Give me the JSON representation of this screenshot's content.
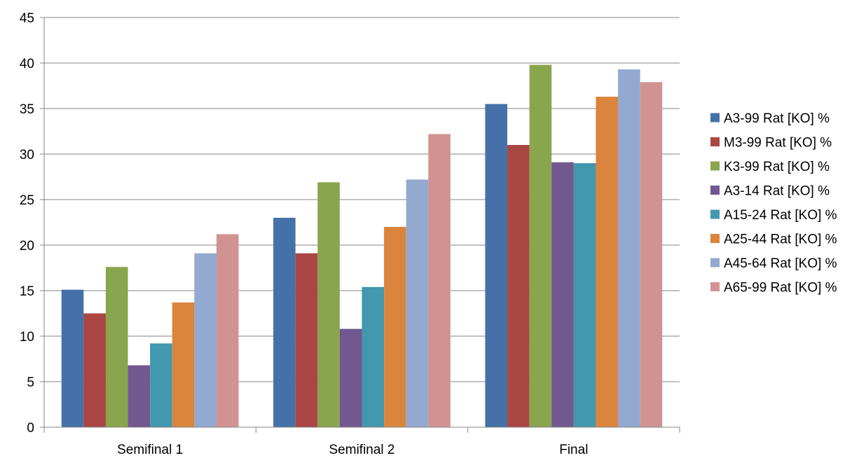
{
  "chart_data": {
    "type": "bar",
    "categories": [
      "Semifinal 1",
      "Semifinal 2",
      "Final"
    ],
    "series": [
      {
        "name": "A3-99 Rat [KO] %",
        "color": "#4472A8",
        "values": [
          15.1,
          23.0,
          35.5
        ]
      },
      {
        "name": "M3-99 Rat [KO] %",
        "color": "#AA4644",
        "values": [
          12.5,
          19.1,
          31.0
        ]
      },
      {
        "name": "K3-99 Rat [KO] %",
        "color": "#89A54E",
        "values": [
          17.6,
          26.9,
          39.8
        ]
      },
      {
        "name": "A3-14 Rat [KO] %",
        "color": "#71588F",
        "values": [
          6.8,
          10.8,
          29.1
        ]
      },
      {
        "name": "A15-24 Rat [KO] %",
        "color": "#4198AF",
        "values": [
          9.2,
          15.4,
          29.0
        ]
      },
      {
        "name": "A25-44 Rat [KO] %",
        "color": "#DB843D",
        "values": [
          13.7,
          22.0,
          36.3
        ]
      },
      {
        "name": "A45-64 Rat [KO] %",
        "color": "#93A9CF",
        "values": [
          19.1,
          27.2,
          39.3
        ]
      },
      {
        "name": "A65-99 Rat [KO] %",
        "color": "#D19392",
        "values": [
          21.2,
          32.2,
          37.9
        ]
      }
    ],
    "y_ticks": [
      "0",
      "5",
      "10",
      "15",
      "20",
      "25",
      "30",
      "35",
      "40",
      "45"
    ],
    "ylim": [
      0,
      45
    ],
    "y_step": 5,
    "grid": true,
    "legend_position": "right",
    "title": "",
    "xlabel": "",
    "ylabel": ""
  }
}
